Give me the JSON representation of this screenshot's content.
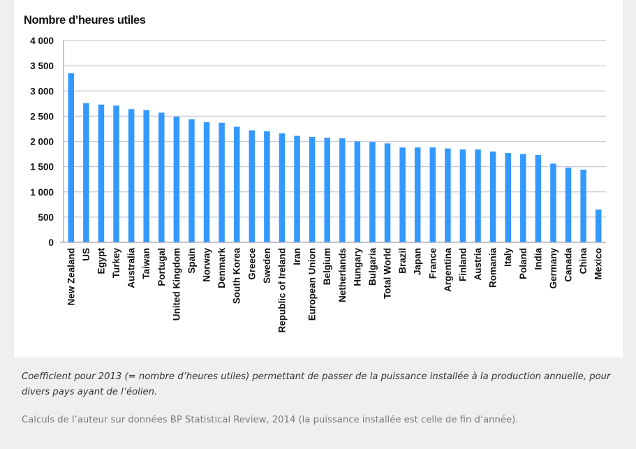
{
  "chart_data": {
    "type": "bar",
    "title": "Nombre d’heures utiles",
    "xlabel": "",
    "ylabel": "",
    "ylim": [
      0,
      4000
    ],
    "yticks": [
      0,
      500,
      1000,
      1500,
      2000,
      2500,
      3000,
      3500,
      4000
    ],
    "ytick_labels": [
      "0",
      "500",
      "1 000",
      "1 500",
      "2 000",
      "2 500",
      "3 000",
      "3 500",
      "4 000"
    ],
    "grid": true,
    "bar_color": "#3399ff",
    "categories": [
      "New Zealand",
      "US",
      "Egypt",
      "Turkey",
      "Australia",
      "Taiwan",
      "Portugal",
      "United Kingdom",
      "Spain",
      "Norway",
      "Denmark",
      "South Korea",
      "Greece",
      "Sweden",
      "Republic of Ireland",
      "Iran",
      "European Union",
      "Belgium",
      "Netherlands",
      "Hungary",
      "Bulgaria",
      "Total World",
      "Brazil",
      "Japan",
      "France",
      "Argentina",
      "Finland",
      "Austria",
      "Romania",
      "Italy",
      "Poland",
      "India",
      "Germany",
      "Canada",
      "China",
      "Mexico"
    ],
    "values": [
      3350,
      2760,
      2730,
      2710,
      2640,
      2620,
      2570,
      2490,
      2440,
      2380,
      2370,
      2290,
      2220,
      2200,
      2160,
      2110,
      2090,
      2070,
      2060,
      2000,
      1990,
      1960,
      1880,
      1880,
      1880,
      1860,
      1840,
      1840,
      1800,
      1770,
      1750,
      1730,
      1560,
      1480,
      1440,
      650
    ]
  },
  "caption": "Coefficient pour 2013 (= nombre d’heures utiles) permettant de passer de la puissance installée à la production annuelle, pour divers pays ayant de l’éolien.",
  "source": "Calculs de l’auteur sur données BP Statistical Review, 2014 (la puissance installée est celle de fin d’année)."
}
